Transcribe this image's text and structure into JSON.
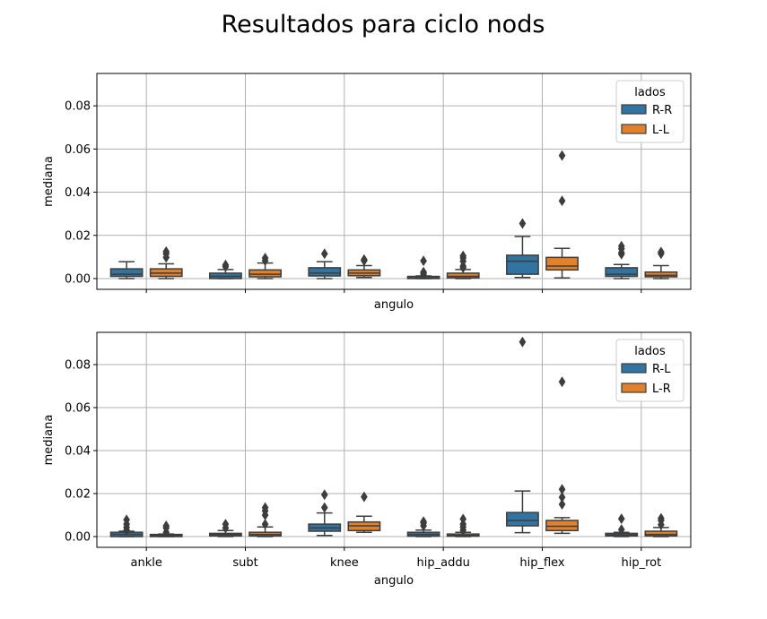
{
  "figure": {
    "title": "Resultados para ciclo nods"
  },
  "chart_data": [
    {
      "type": "box",
      "xlabel": "angulo",
      "ylabel": "mediana",
      "ylim": [
        -0.005,
        0.095
      ],
      "yticks": [
        0.0,
        0.02,
        0.04,
        0.06,
        0.08
      ],
      "ytick_labels": [
        "0.00",
        "0.02",
        "0.04",
        "0.06",
        "0.08"
      ],
      "show_xtick_labels": false,
      "grid": true,
      "categories": [
        "ankle",
        "subt",
        "knee",
        "hip_addu",
        "hip_flex",
        "hip_rot"
      ],
      "legend": {
        "title": "lados",
        "position": "top-right"
      },
      "series": [
        {
          "name": "R-R",
          "color": "#3274a1",
          "boxes": [
            {
              "whislo": 0.0,
              "q1": 0.001,
              "med": 0.002,
              "q3": 0.0045,
              "whishi": 0.0078,
              "fliers": []
            },
            {
              "whislo": 0.0,
              "q1": 0.0,
              "med": 0.001,
              "q3": 0.0025,
              "whishi": 0.0042,
              "fliers": [
                0.0055,
                0.0063
              ]
            },
            {
              "whislo": 0.0,
              "q1": 0.0012,
              "med": 0.0025,
              "q3": 0.005,
              "whishi": 0.0078,
              "fliers": [
                0.0115
              ]
            },
            {
              "whislo": 0.0,
              "q1": 0.0,
              "med": 0.0003,
              "q3": 0.001,
              "whishi": 0.0012,
              "fliers": [
                0.002,
                0.0028,
                0.003,
                0.0082
              ]
            },
            {
              "whislo": 0.0005,
              "q1": 0.002,
              "med": 0.008,
              "q3": 0.0108,
              "whishi": 0.0195,
              "fliers": [
                0.0255
              ]
            },
            {
              "whislo": 0.0,
              "q1": 0.001,
              "med": 0.002,
              "q3": 0.005,
              "whishi": 0.0065,
              "fliers": [
                0.0113,
                0.012,
                0.0138,
                0.015
              ]
            }
          ]
        },
        {
          "name": "L-L",
          "color": "#e1812c",
          "boxes": [
            {
              "whislo": 0.0,
              "q1": 0.001,
              "med": 0.0025,
              "q3": 0.0045,
              "whishi": 0.0068,
              "fliers": [
                0.0098,
                0.0115,
                0.0125
              ]
            },
            {
              "whislo": 0.0,
              "q1": 0.0008,
              "med": 0.002,
              "q3": 0.004,
              "whishi": 0.0072,
              "fliers": [
                0.0083,
                0.0095
              ]
            },
            {
              "whislo": 0.0005,
              "q1": 0.0013,
              "med": 0.0025,
              "q3": 0.004,
              "whishi": 0.006,
              "fliers": [
                0.0083,
                0.0088
              ]
            },
            {
              "whislo": 0.0,
              "q1": 0.0003,
              "med": 0.001,
              "q3": 0.0025,
              "whishi": 0.0042,
              "fliers": [
                0.005,
                0.0058,
                0.008,
                0.0095,
                0.0105
              ]
            },
            {
              "whislo": 0.0003,
              "q1": 0.004,
              "med": 0.0058,
              "q3": 0.0098,
              "whishi": 0.014,
              "fliers": [
                0.036,
                0.057
              ]
            },
            {
              "whislo": 0.0,
              "q1": 0.0008,
              "med": 0.0015,
              "q3": 0.003,
              "whishi": 0.006,
              "fliers": [
                0.0115,
                0.0123
              ]
            }
          ]
        }
      ]
    },
    {
      "type": "box",
      "xlabel": "angulo",
      "ylabel": "mediana",
      "ylim": [
        -0.005,
        0.095
      ],
      "yticks": [
        0.0,
        0.02,
        0.04,
        0.06,
        0.08
      ],
      "ytick_labels": [
        "0.00",
        "0.02",
        "0.04",
        "0.06",
        "0.08"
      ],
      "show_xtick_labels": true,
      "grid": true,
      "categories": [
        "ankle",
        "subt",
        "knee",
        "hip_addu",
        "hip_flex",
        "hip_rot"
      ],
      "legend": {
        "title": "lados",
        "position": "top-right"
      },
      "series": [
        {
          "name": "R-L",
          "color": "#3274a1",
          "boxes": [
            {
              "whislo": 0.0,
              "q1": 0.0,
              "med": 0.001,
              "q3": 0.002,
              "whishi": 0.0025,
              "fliers": [
                0.003,
                0.0043,
                0.0058,
                0.0078
              ]
            },
            {
              "whislo": 0.0,
              "q1": 0.0003,
              "med": 0.001,
              "q3": 0.0015,
              "whishi": 0.0028,
              "fliers": [
                0.004,
                0.0058
              ]
            },
            {
              "whislo": 0.0005,
              "q1": 0.0025,
              "med": 0.004,
              "q3": 0.0058,
              "whishi": 0.011,
              "fliers": [
                0.0135,
                0.0195
              ]
            },
            {
              "whislo": 0.0,
              "q1": 0.0002,
              "med": 0.001,
              "q3": 0.002,
              "whishi": 0.003,
              "fliers": [
                0.005,
                0.0063,
                0.007
              ]
            },
            {
              "whislo": 0.0018,
              "q1": 0.005,
              "med": 0.0075,
              "q3": 0.0112,
              "whishi": 0.0212,
              "fliers": [
                0.0905
              ]
            },
            {
              "whislo": 0.0,
              "q1": 0.0003,
              "med": 0.0008,
              "q3": 0.0015,
              "whishi": 0.002,
              "fliers": [
                0.0033,
                0.0083
              ]
            }
          ]
        },
        {
          "name": "L-R",
          "color": "#e1812c",
          "boxes": [
            {
              "whislo": 0.0,
              "q1": 0.0,
              "med": 0.0005,
              "q3": 0.001,
              "whishi": 0.0012,
              "fliers": [
                0.002,
                0.004,
                0.005
              ]
            },
            {
              "whislo": 0.0,
              "q1": 0.0003,
              "med": 0.001,
              "q3": 0.002,
              "whishi": 0.0045,
              "fliers": [
                0.0058,
                0.01,
                0.012,
                0.0135
              ]
            },
            {
              "whislo": 0.002,
              "q1": 0.0028,
              "med": 0.005,
              "q3": 0.0068,
              "whishi": 0.0095,
              "fliers": [
                0.0185
              ]
            },
            {
              "whislo": 0.0,
              "q1": 0.0002,
              "med": 0.0005,
              "q3": 0.0012,
              "whishi": 0.002,
              "fliers": [
                0.003,
                0.0045,
                0.0058,
                0.0082
              ]
            },
            {
              "whislo": 0.0015,
              "q1": 0.0028,
              "med": 0.0048,
              "q3": 0.0075,
              "whishi": 0.0088,
              "fliers": [
                0.015,
                0.0183,
                0.022,
                0.072
              ]
            },
            {
              "whislo": 0.0,
              "q1": 0.0003,
              "med": 0.001,
              "q3": 0.0025,
              "whishi": 0.0042,
              "fliers": [
                0.0055,
                0.0075,
                0.0085
              ]
            }
          ]
        }
      ]
    }
  ]
}
